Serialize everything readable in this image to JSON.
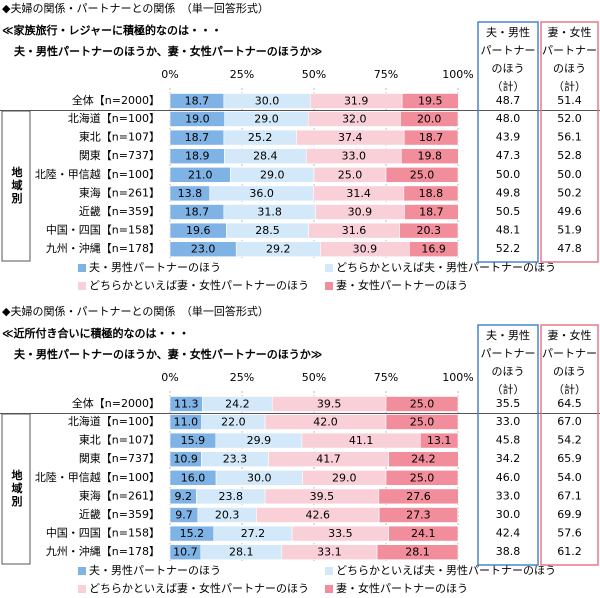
{
  "chart_data": [
    {
      "type": "bar",
      "stacked": true,
      "orientation": "horizontal",
      "title": "◆夫婦の関係・パートナーとの関係　（単一回答形式）",
      "question": "≪家族旅行・レジャーに積極的なのは・・・",
      "subtitle": "夫・男性パートナーのほうか、妻・女性パートナーのほうか≫",
      "group_label": "地域別",
      "categories": [
        "全体【n=2000】",
        "北海道【n=100】",
        "東北【n=107】",
        "関東【n=737】",
        "北陸・甲信越【n=100】",
        "東海【n=261】",
        "近畿【n=359】",
        "中国・四国【n=158】",
        "九州・沖縄【n=178】"
      ],
      "xlim": [
        0,
        100
      ],
      "xticks": [
        {
          "value": 0,
          "label": "0%"
        },
        {
          "value": 25,
          "label": "25%"
        },
        {
          "value": 50,
          "label": "50%"
        },
        {
          "value": 75,
          "label": "75%"
        },
        {
          "value": 100,
          "label": "100%"
        }
      ],
      "series": [
        {
          "name": "夫・男性パートナーのほう",
          "color": "#7fb3e6",
          "values": [
            18.7,
            19.0,
            18.7,
            18.9,
            21.0,
            13.8,
            18.7,
            19.6,
            23.0
          ],
          "value_labels": [
            "18.7",
            "19.0",
            "18.7",
            "18.9",
            "21.0",
            "13.8",
            "18.7",
            "19.6",
            "23.0"
          ]
        },
        {
          "name": "どちらかといえば夫・男性パートナーのほう",
          "color": "#d3e8f8",
          "values": [
            30.0,
            29.0,
            25.2,
            28.4,
            29.0,
            36.0,
            31.8,
            28.5,
            29.2
          ],
          "value_labels": [
            "30.0",
            "29.0",
            "25.2",
            "28.4",
            "29.0",
            "36.0",
            "31.8",
            "28.5",
            "29.2"
          ]
        },
        {
          "name": "どちらかといえば妻・女性パートナーのほう",
          "color": "#f9d0d7",
          "values": [
            31.9,
            32.0,
            37.4,
            33.0,
            25.0,
            31.4,
            30.9,
            31.6,
            30.9
          ],
          "value_labels": [
            "31.9",
            "32.0",
            "37.4",
            "33.0",
            "25.0",
            "31.4",
            "30.9",
            "31.6",
            "30.9"
          ]
        },
        {
          "name": "妻・女性パートナーのほう",
          "color": "#f28d9b",
          "values": [
            19.5,
            20.0,
            18.7,
            19.8,
            25.0,
            18.8,
            18.7,
            20.3,
            16.9
          ],
          "value_labels": [
            "19.5",
            "20.0",
            "18.7",
            "19.8",
            "25.0",
            "18.8",
            "18.7",
            "20.3",
            "16.9"
          ]
        }
      ],
      "totals": [
        {
          "name_lines": [
            "夫・男性",
            "パートナー",
            "のほう",
            "（計）"
          ],
          "color": "#4a86c8",
          "values": [
            48.7,
            48.0,
            43.9,
            47.3,
            50.0,
            49.8,
            50.5,
            48.1,
            52.2
          ],
          "value_labels": [
            "48.7",
            "48.0",
            "43.9",
            "47.3",
            "50.0",
            "49.8",
            "50.5",
            "48.1",
            "52.2"
          ]
        },
        {
          "name_lines": [
            "妻・女性",
            "パートナー",
            "のほう",
            "（計）"
          ],
          "color": "#e8788a",
          "values": [
            51.4,
            52.0,
            56.1,
            52.8,
            50.0,
            50.2,
            49.6,
            51.9,
            47.8
          ],
          "value_labels": [
            "51.4",
            "52.0",
            "56.1",
            "52.8",
            "50.0",
            "50.2",
            "49.6",
            "51.9",
            "47.8"
          ]
        }
      ]
    },
    {
      "type": "bar",
      "stacked": true,
      "orientation": "horizontal",
      "title": "◆夫婦の関係・パートナーとの関係　（単一回答形式）",
      "question": "≪近所付き合いに積極的なのは・・・",
      "subtitle": "夫・男性パートナーのほうか、妻・女性パートナーのほうか≫",
      "group_label": "地域別",
      "categories": [
        "全体【n=2000】",
        "北海道【n=100】",
        "東北【n=107】",
        "関東【n=737】",
        "北陸・甲信越【n=100】",
        "東海【n=261】",
        "近畿【n=359】",
        "中国・四国【n=158】",
        "九州・沖縄【n=178】"
      ],
      "xlim": [
        0,
        100
      ],
      "xticks": [
        {
          "value": 0,
          "label": "0%"
        },
        {
          "value": 25,
          "label": "25%"
        },
        {
          "value": 50,
          "label": "50%"
        },
        {
          "value": 75,
          "label": "75%"
        },
        {
          "value": 100,
          "label": "100%"
        }
      ],
      "series": [
        {
          "name": "夫・男性パートナーのほう",
          "color": "#7fb3e6",
          "values": [
            11.3,
            11.0,
            15.9,
            10.9,
            16.0,
            9.2,
            9.7,
            15.2,
            10.7
          ],
          "value_labels": [
            "11.3",
            "11.0",
            "15.9",
            "10.9",
            "16.0",
            "9.2",
            "9.7",
            "15.2",
            "10.7"
          ]
        },
        {
          "name": "どちらかといえば夫・男性パートナーのほう",
          "color": "#d3e8f8",
          "values": [
            24.2,
            22.0,
            29.9,
            23.3,
            30.0,
            23.8,
            20.3,
            27.2,
            28.1
          ],
          "value_labels": [
            "24.2",
            "22.0",
            "29.9",
            "23.3",
            "30.0",
            "23.8",
            "20.3",
            "27.2",
            "28.1"
          ]
        },
        {
          "name": "どちらかといえば妻・女性パートナーのほう",
          "color": "#f9d0d7",
          "values": [
            39.5,
            42.0,
            41.1,
            41.7,
            29.0,
            39.5,
            42.6,
            33.5,
            33.1
          ],
          "value_labels": [
            "39.5",
            "42.0",
            "41.1",
            "41.7",
            "29.0",
            "39.5",
            "42.6",
            "33.5",
            "33.1"
          ]
        },
        {
          "name": "妻・女性パートナーのほう",
          "color": "#f28d9b",
          "values": [
            25.0,
            25.0,
            13.1,
            24.2,
            25.0,
            27.6,
            27.3,
            24.1,
            28.1
          ],
          "value_labels": [
            "25.0",
            "25.0",
            "13.1",
            "24.2",
            "25.0",
            "27.6",
            "27.3",
            "24.1",
            "28.1"
          ]
        }
      ],
      "totals": [
        {
          "name_lines": [
            "夫・男性",
            "パートナー",
            "のほう",
            "（計）"
          ],
          "color": "#4a86c8",
          "values": [
            35.5,
            33.0,
            45.8,
            34.2,
            46.0,
            33.0,
            30.0,
            42.4,
            38.8
          ],
          "value_labels": [
            "35.5",
            "33.0",
            "45.8",
            "34.2",
            "46.0",
            "33.0",
            "30.0",
            "42.4",
            "38.8"
          ]
        },
        {
          "name_lines": [
            "妻・女性",
            "パートナー",
            "のほう",
            "（計）"
          ],
          "color": "#e8788a",
          "values": [
            64.5,
            67.0,
            54.2,
            65.9,
            54.0,
            67.1,
            69.9,
            57.6,
            61.2
          ],
          "value_labels": [
            "64.5",
            "67.0",
            "54.2",
            "65.9",
            "54.0",
            "67.1",
            "69.9",
            "57.6",
            "61.2"
          ]
        }
      ]
    }
  ]
}
